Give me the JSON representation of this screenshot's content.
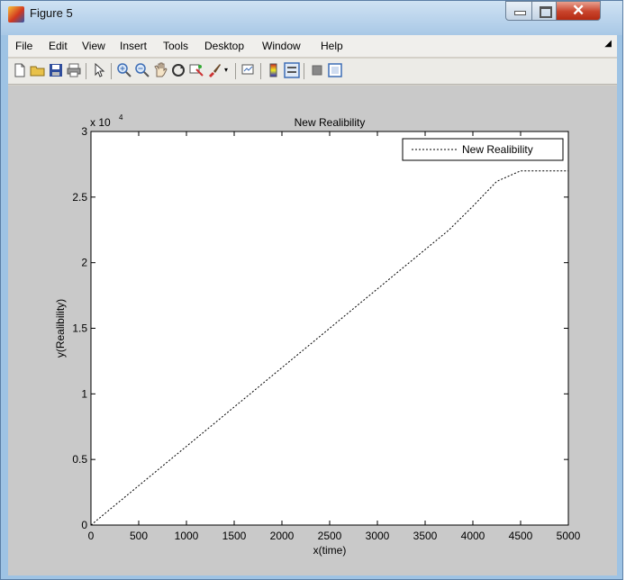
{
  "window": {
    "title": "Figure 5"
  },
  "menu": [
    "File",
    "Edit",
    "View",
    "Insert",
    "Tools",
    "Desktop",
    "Window",
    "Help"
  ],
  "toolbar": {
    "buttons": [
      "new-file",
      "open-file",
      "save",
      "print",
      "edit-plot",
      "zoom-in",
      "zoom-out",
      "pan",
      "rotate-3d",
      "data-cursor",
      "brush",
      "link-plot",
      "insert-colorbar",
      "insert-legend",
      "hide-plot-tools",
      "show-plot-tools"
    ]
  },
  "chart_data": {
    "type": "line",
    "title": "New Realibility",
    "xlabel": "x(time)",
    "ylabel": "y(Realibility)",
    "y_exponent_label": "x 10",
    "y_exponent_power": "4",
    "xlim": [
      0,
      5000
    ],
    "ylim": [
      0,
      30000
    ],
    "x_ticks": [
      "0",
      "500",
      "1000",
      "1500",
      "2000",
      "2500",
      "3000",
      "3500",
      "4000",
      "4500",
      "5000"
    ],
    "y_ticks": [
      "0",
      "0.5",
      "1",
      "1.5",
      "2",
      "2.5",
      "3"
    ],
    "grid": false,
    "legend_position": "top-right",
    "series": [
      {
        "name": "New Realibility",
        "style": "dotted",
        "color": "#000000",
        "x": [
          0,
          250,
          500,
          750,
          1000,
          1250,
          1500,
          1750,
          2000,
          2250,
          2500,
          2750,
          3000,
          3250,
          3500,
          3750,
          4000,
          4250,
          4500,
          4750,
          5000
        ],
        "y": [
          0,
          1500,
          3000,
          4500,
          6000,
          7500,
          9000,
          10500,
          12000,
          13500,
          15000,
          16500,
          18000,
          19500,
          21000,
          22500,
          24300,
          26200,
          27000,
          27000,
          27000
        ]
      }
    ]
  }
}
